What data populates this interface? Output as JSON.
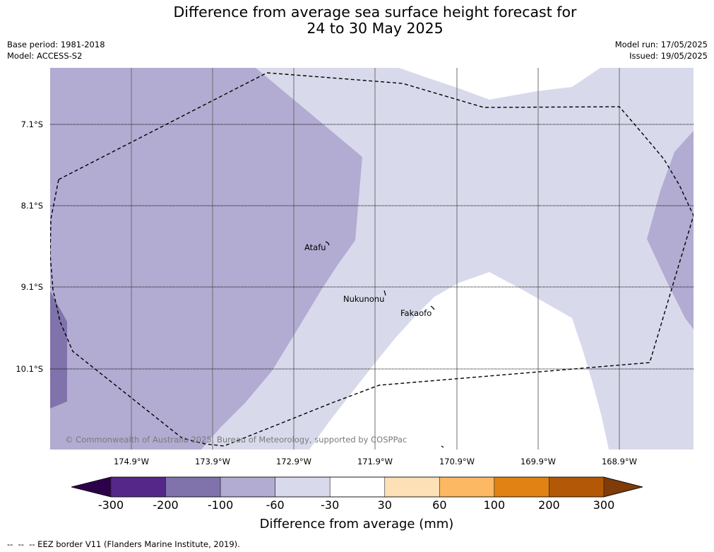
{
  "title": {
    "line1": "Difference from average sea surface height forecast for",
    "line2": "24 to 30 May 2025"
  },
  "info": {
    "base_period": "Base period: 1981-2018",
    "model": "Model: ACCESS-S2",
    "model_run": "Model run: 17/05/2025",
    "issued": "Issued: 19/05/2025"
  },
  "map": {
    "longitudes": [
      "174.9°W",
      "173.9°W",
      "172.9°W",
      "171.9°W",
      "170.9°W",
      "169.9°W",
      "168.9°W"
    ],
    "latitudes": [
      "7.1°S",
      "8.1°S",
      "9.1°S",
      "10.1°S"
    ],
    "islands": [
      "Atafu",
      "Nukunonu",
      "Fakaofo"
    ],
    "copyright": "© Commonwealth of Australia 2025, Bureau of Meteorology, supported by COSPPac"
  },
  "colorbar": {
    "label": "Difference from average (mm)",
    "ticks": [
      "-300",
      "-200",
      "-100",
      "-60",
      "-30",
      "30",
      "60",
      "100",
      "200",
      "300"
    ],
    "colors": [
      "#2d004b",
      "#542788",
      "#8073ac",
      "#b2abd2",
      "#d8daeb",
      "#ffffff",
      "#fee0b6",
      "#fdb863",
      "#e08214",
      "#b35806",
      "#7f3b08"
    ]
  },
  "legend": {
    "eez": "--  --  -- EEZ border V11 (Flanders Marine Institute, 2019)."
  }
}
